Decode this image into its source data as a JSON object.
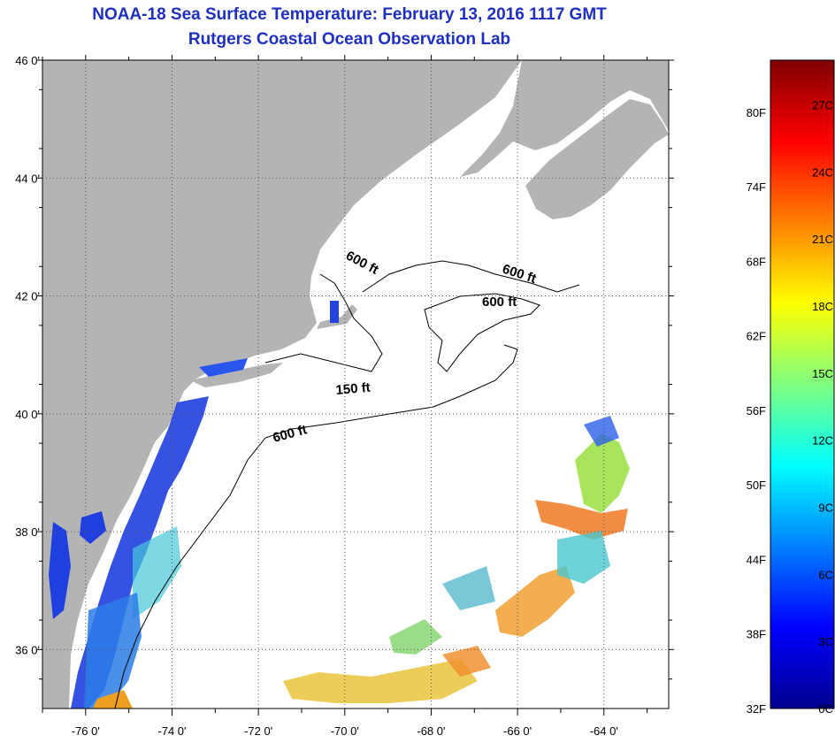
{
  "title": {
    "line1": "NOAA-18 Sea Surface Temperature:  February 13, 2016 1117 GMT",
    "line2": "Rutgers Coastal Ocean Observation Lab"
  },
  "map": {
    "lon_range": [
      -77,
      -62.5
    ],
    "lat_range": [
      35,
      46
    ],
    "lat_ticks": [
      {
        "lat": 46,
        "label": "46 0'"
      },
      {
        "lat": 44,
        "label": "44 0'"
      },
      {
        "lat": 42,
        "label": "42 0'"
      },
      {
        "lat": 40,
        "label": "40 0'"
      },
      {
        "lat": 38,
        "label": "38 0'"
      },
      {
        "lat": 36,
        "label": "36 0'"
      }
    ],
    "lon_ticks": [
      {
        "lon": -76,
        "label": "-76 0'"
      },
      {
        "lon": -74,
        "label": "-74 0'"
      },
      {
        "lon": -72,
        "label": "-72 0'"
      },
      {
        "lon": -70,
        "label": "-70 0'"
      },
      {
        "lon": -68,
        "label": "-68 0'"
      },
      {
        "lon": -66,
        "label": "-66 0'"
      },
      {
        "lon": -64,
        "label": "-64 0'"
      }
    ],
    "contour_labels": [
      "600 ft",
      "600 ft",
      "600 ft",
      "150 ft",
      "600 ft"
    ],
    "colors": {
      "land": "#b4b4b4",
      "water": "#ffffff",
      "contour": "#000000"
    }
  },
  "legend": {
    "fahrenheit": [
      "80F",
      "74F",
      "68F",
      "62F",
      "56F",
      "50F",
      "44F",
      "38F",
      "32F"
    ],
    "celsius": [
      "27C",
      "24C",
      "21C",
      "18C",
      "15C",
      "12C",
      "9C",
      "6C",
      "3C",
      "0C"
    ],
    "range_c": [
      0,
      29
    ]
  }
}
